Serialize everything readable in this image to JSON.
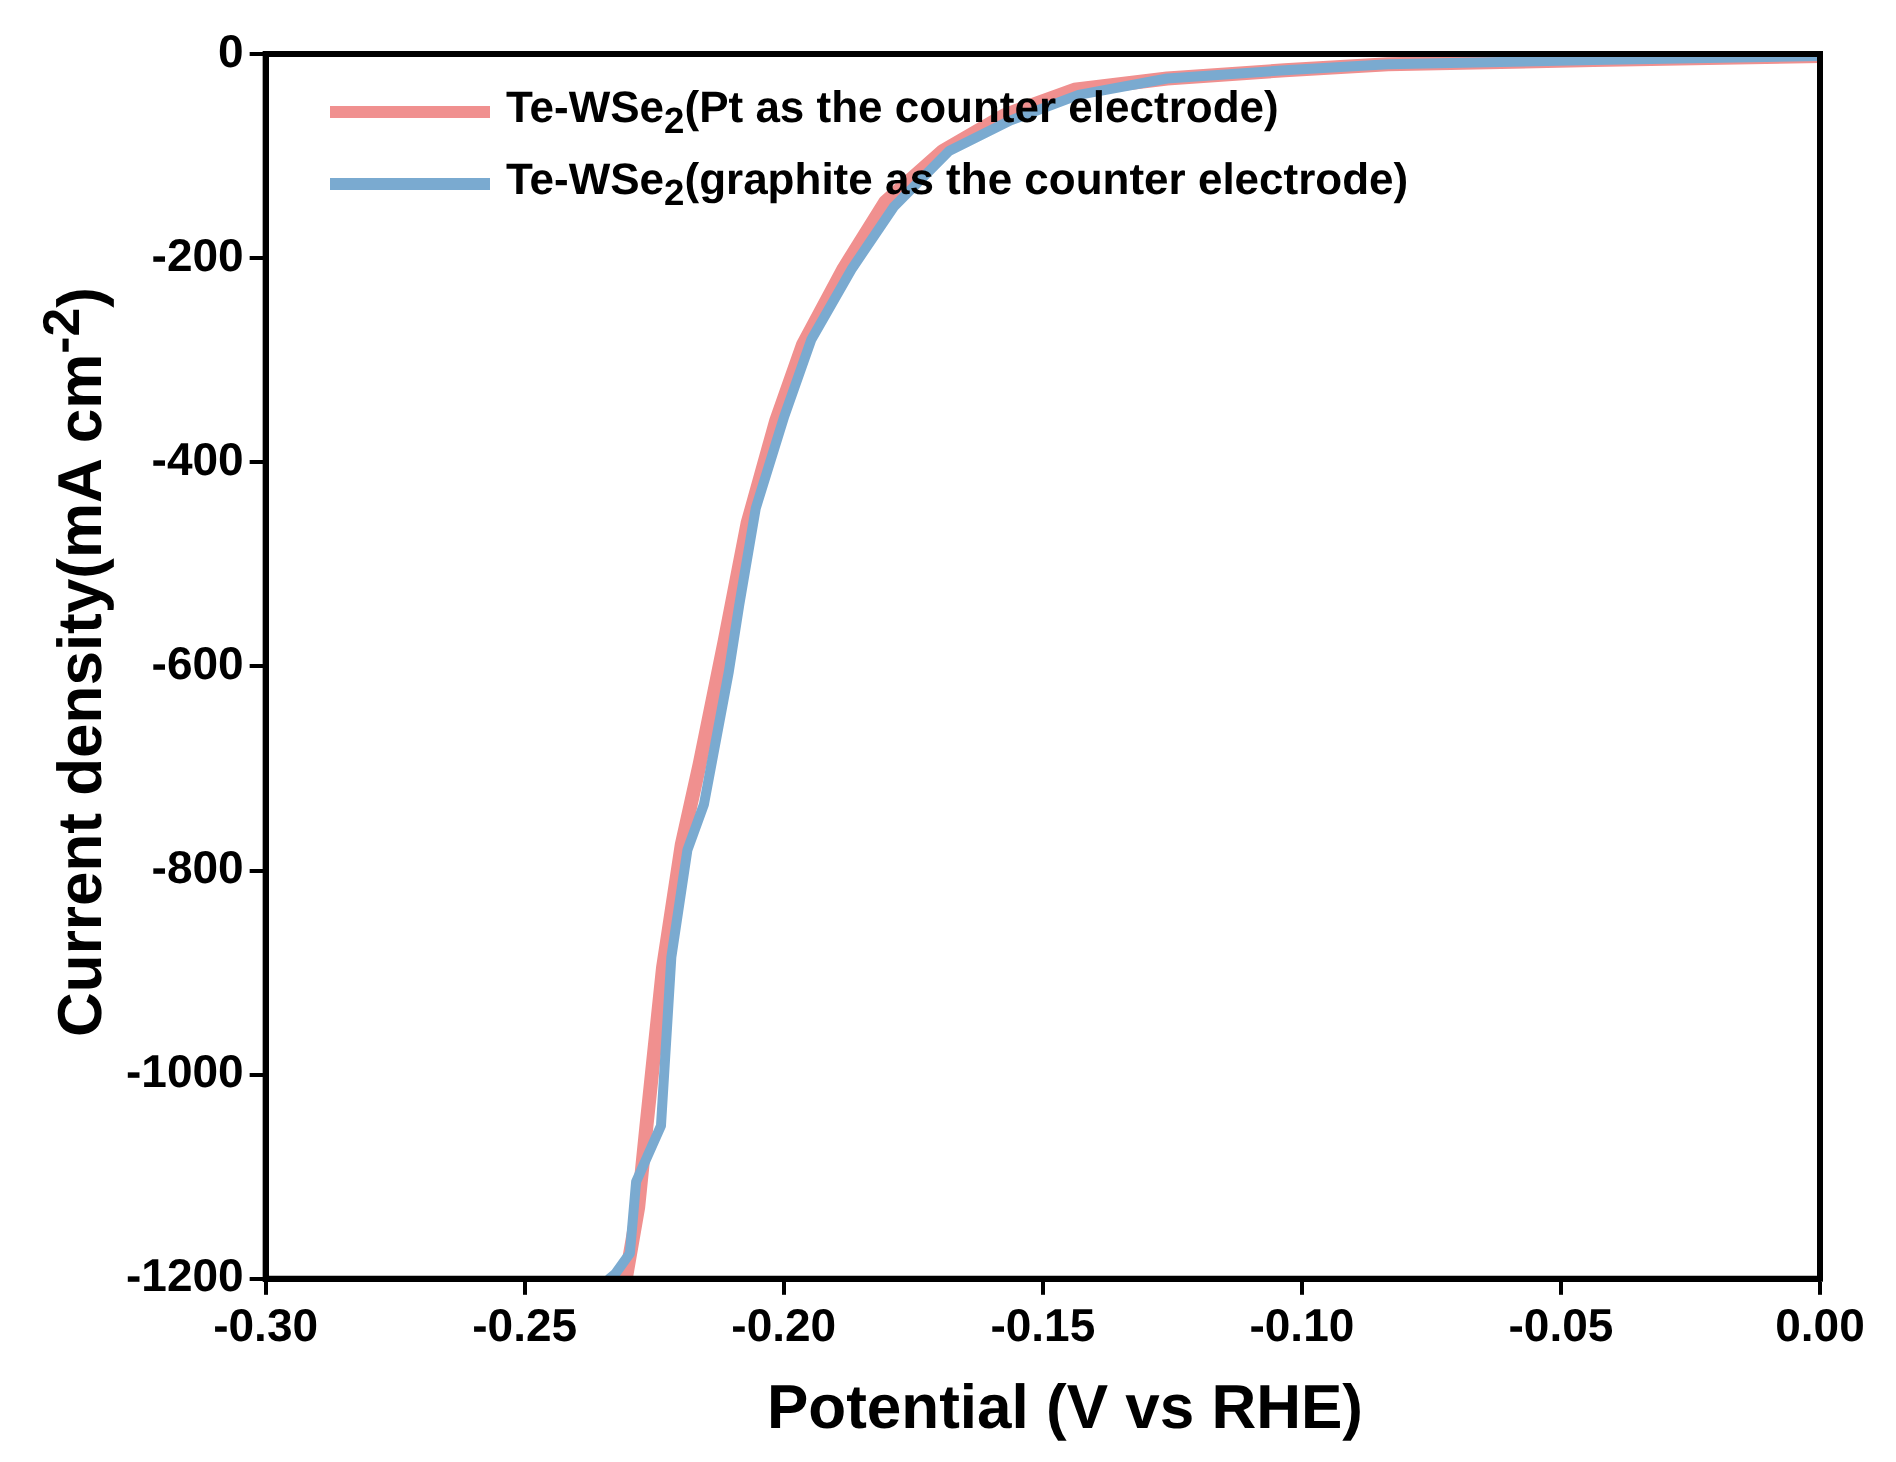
{
  "chart_data": {
    "type": "line",
    "xlabel": "Potential (V vs RHE)",
    "ylabel": "Current density(mA cm$^{-2}$)",
    "xlim": [
      -0.3,
      0
    ],
    "ylim": [
      -1200,
      0
    ],
    "xticks": [
      {
        "value": -0.3,
        "label": "-0.30"
      },
      {
        "value": -0.25,
        "label": "-0.25"
      },
      {
        "value": -0.2,
        "label": "-0.20"
      },
      {
        "value": -0.15,
        "label": "-0.15"
      },
      {
        "value": -0.1,
        "label": "-0.10"
      },
      {
        "value": -0.05,
        "label": "-0.05"
      },
      {
        "value": 0,
        "label": "0.00"
      }
    ],
    "yticks": [
      -1200,
      -1000,
      -800,
      -600,
      -400,
      -200,
      0
    ],
    "grid": false,
    "legend": "top left",
    "marker": "none",
    "line_style": "solid",
    "series": [
      {
        "name": "Te-WSe$_{2}$(Pt as the counter electrode)",
        "color": "#f0908f",
        "x": [
          -0.2305,
          -0.2281,
          -0.2265,
          -0.2233,
          -0.2197,
          -0.2162,
          -0.2114,
          -0.207,
          -0.2015,
          -0.1963,
          -0.1884,
          -0.1804,
          -0.1693,
          -0.1574,
          -0.1439,
          -0.126,
          -0.1033,
          -0.0834,
          -0.0437,
          0
        ],
        "values": [
          -1200,
          -1130,
          -1050,
          -895,
          -775,
          -695,
          -575,
          -460,
          -360,
          -285,
          -210,
          -145,
          -95,
          -60,
          -35,
          -24,
          -16,
          -10,
          -6,
          -2
        ]
      },
      {
        "name": "Te-WSe$_{2}$(graphite as the counter electrode)",
        "color": "#7aaad0",
        "x": [
          -0.2337,
          -0.2325,
          -0.2297,
          -0.2285,
          -0.2237,
          -0.2217,
          -0.2186,
          -0.2154,
          -0.2106,
          -0.2086,
          -0.2054,
          -0.1999,
          -0.1947,
          -0.1868,
          -0.1788,
          -0.1681,
          -0.1562,
          -0.1431,
          -0.126,
          -0.1033,
          -0.0834,
          -0.0437,
          0
        ],
        "values": [
          -1200,
          -1195,
          -1175,
          -1105,
          -1050,
          -885,
          -780,
          -735,
          -605,
          -540,
          -445,
          -355,
          -280,
          -210,
          -150,
          -95,
          -65,
          -40,
          -24,
          -16,
          -10,
          -6,
          -2
        ]
      }
    ]
  }
}
